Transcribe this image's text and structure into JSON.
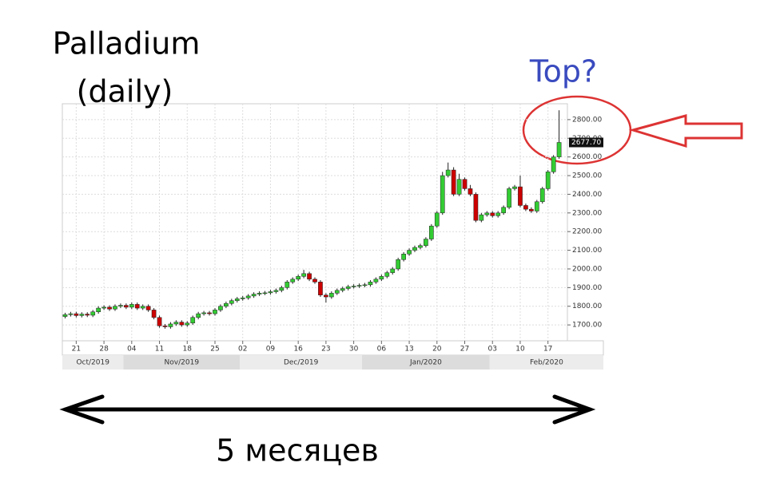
{
  "chart_data": {
    "type": "candlestick",
    "title": "Palladium",
    "subtitle": "(daily)",
    "annotation": "Top?",
    "span_label": "5 месяцев",
    "last_label": "2677.70",
    "up_color": "#33cc33",
    "down_color": "#cc0000",
    "grid": true,
    "open": [
      1745,
      1755,
      1760,
      1750,
      1758,
      1752,
      1770,
      1790,
      1795,
      1785,
      1800,
      1805,
      1795,
      1810,
      1790,
      1800,
      1780,
      1740,
      1695,
      1690,
      1705,
      1715,
      1700,
      1710,
      1740,
      1760,
      1765,
      1760,
      1780,
      1800,
      1815,
      1830,
      1840,
      1845,
      1855,
      1865,
      1870,
      1872,
      1878,
      1885,
      1900,
      1930,
      1945,
      1960,
      1975,
      1945,
      1930,
      1860,
      1850,
      1870,
      1885,
      1895,
      1905,
      1908,
      1912,
      1915,
      1930,
      1945,
      1960,
      1980,
      2000,
      2050,
      2080,
      2100,
      2115,
      2125,
      2160,
      2230,
      2300,
      2500,
      2530,
      2400,
      2480,
      2430,
      2400,
      2260,
      2290,
      2300,
      2285,
      2300,
      2330,
      2430,
      2440,
      2340,
      2320,
      2310,
      2360,
      2430,
      2520,
      2600
    ],
    "high": [
      1765,
      1770,
      1770,
      1768,
      1768,
      1780,
      1800,
      1805,
      1805,
      1810,
      1815,
      1815,
      1820,
      1820,
      1810,
      1810,
      1790,
      1750,
      1705,
      1715,
      1725,
      1725,
      1720,
      1750,
      1770,
      1775,
      1775,
      1790,
      1810,
      1825,
      1840,
      1850,
      1855,
      1865,
      1875,
      1880,
      1882,
      1888,
      1895,
      1910,
      1940,
      1955,
      1970,
      1995,
      1985,
      1955,
      1940,
      1870,
      1880,
      1895,
      1905,
      1915,
      1918,
      1922,
      1925,
      1940,
      1955,
      1970,
      1990,
      2010,
      2060,
      2090,
      2110,
      2125,
      2135,
      2170,
      2240,
      2310,
      2520,
      2570,
      2545,
      2510,
      2490,
      2450,
      2410,
      2300,
      2310,
      2310,
      2310,
      2340,
      2440,
      2450,
      2500,
      2350,
      2330,
      2370,
      2440,
      2530,
      2610,
      2850
    ],
    "low": [
      1735,
      1745,
      1740,
      1740,
      1742,
      1742,
      1760,
      1780,
      1775,
      1775,
      1790,
      1785,
      1785,
      1780,
      1780,
      1770,
      1730,
      1685,
      1680,
      1680,
      1695,
      1690,
      1690,
      1700,
      1730,
      1750,
      1750,
      1750,
      1770,
      1790,
      1805,
      1820,
      1830,
      1835,
      1845,
      1855,
      1860,
      1862,
      1868,
      1875,
      1890,
      1920,
      1935,
      1950,
      1935,
      1920,
      1850,
      1820,
      1840,
      1860,
      1875,
      1885,
      1895,
      1898,
      1902,
      1905,
      1920,
      1935,
      1950,
      1970,
      1990,
      2040,
      2070,
      2090,
      2105,
      2115,
      2150,
      2220,
      2290,
      2490,
      2390,
      2390,
      2420,
      2390,
      2250,
      2250,
      2280,
      2275,
      2275,
      2290,
      2320,
      2420,
      2330,
      2310,
      2300,
      2300,
      2350,
      2420,
      2510,
      2590
    ],
    "close": [
      1755,
      1760,
      1750,
      1758,
      1752,
      1770,
      1790,
      1795,
      1785,
      1800,
      1805,
      1795,
      1810,
      1790,
      1800,
      1780,
      1740,
      1695,
      1690,
      1705,
      1715,
      1700,
      1710,
      1740,
      1760,
      1765,
      1760,
      1780,
      1800,
      1815,
      1830,
      1840,
      1845,
      1855,
      1865,
      1870,
      1872,
      1878,
      1885,
      1900,
      1930,
      1945,
      1960,
      1975,
      1945,
      1930,
      1860,
      1850,
      1870,
      1885,
      1895,
      1905,
      1908,
      1912,
      1915,
      1930,
      1945,
      1960,
      1980,
      2000,
      2050,
      2080,
      2100,
      2115,
      2125,
      2160,
      2230,
      2300,
      2500,
      2530,
      2400,
      2480,
      2430,
      2400,
      2260,
      2290,
      2300,
      2285,
      2300,
      2330,
      2430,
      2440,
      2340,
      2320,
      2310,
      2360,
      2430,
      2520,
      2600,
      2677.7
    ],
    "xlim": [
      -0.5,
      90.5
    ],
    "xticks": [
      {
        "value": 2,
        "label": "21"
      },
      {
        "value": 7,
        "label": "28"
      },
      {
        "value": 12,
        "label": "04"
      },
      {
        "value": 17,
        "label": "11"
      },
      {
        "value": 22,
        "label": "18"
      },
      {
        "value": 27,
        "label": "25"
      },
      {
        "value": 32,
        "label": "02"
      },
      {
        "value": 37,
        "label": "09"
      },
      {
        "value": 42,
        "label": "16"
      },
      {
        "value": 47,
        "label": "23"
      },
      {
        "value": 52,
        "label": "30"
      },
      {
        "value": 57,
        "label": "06"
      },
      {
        "value": 62,
        "label": "13"
      },
      {
        "value": 67,
        "label": "20"
      },
      {
        "value": 72,
        "label": "27"
      },
      {
        "value": 77,
        "label": "03"
      },
      {
        "value": 82,
        "label": "10"
      },
      {
        "value": 87,
        "label": "17"
      }
    ],
    "x2ticks": [
      {
        "value": -0.5,
        "label": "Oct/2019"
      },
      {
        "value": 10.5,
        "label": "Nov/2019"
      },
      {
        "value": 31.5,
        "label": "Dec/2019"
      },
      {
        "value": 53.5,
        "label": "Jan/2020"
      },
      {
        "value": 76.5,
        "label": "Feb/2020"
      }
    ],
    "ylim": [
      1615,
      2885
    ],
    "yticks": [
      {
        "value": 1700,
        "label": "1700.00"
      },
      {
        "value": 1800,
        "label": "1800.00"
      },
      {
        "value": 1900,
        "label": "1900.00"
      },
      {
        "value": 2000,
        "label": "2000.00"
      },
      {
        "value": 2100,
        "label": "2100.00"
      },
      {
        "value": 2200,
        "label": "2200.00"
      },
      {
        "value": 2300,
        "label": "2300.00"
      },
      {
        "value": 2400,
        "label": "2400.00"
      },
      {
        "value": 2500,
        "label": "2500.00"
      },
      {
        "value": 2600,
        "label": "2600.00"
      },
      {
        "value": 2700,
        "label": "2700.00"
      },
      {
        "value": 2800,
        "label": "2800.00"
      }
    ]
  }
}
